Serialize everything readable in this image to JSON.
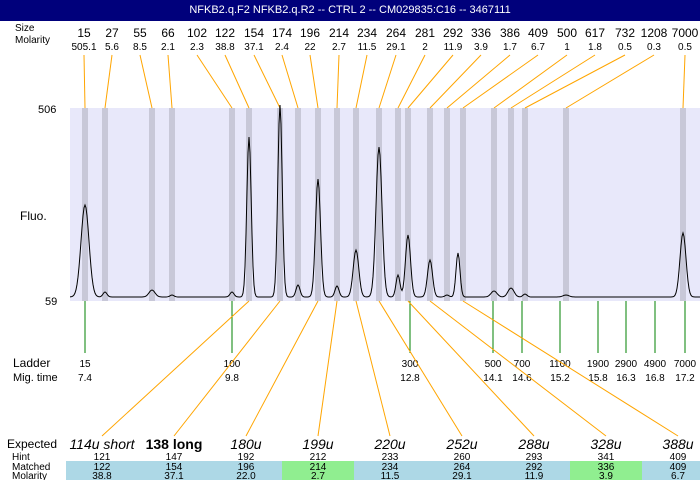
{
  "window": {
    "title": "NFKB2.q.F2  NFKB2.q.R2 -- CTRL 2 -- CM029835:C16 -- 3467111"
  },
  "header_labels": {
    "size": "Size",
    "molarity": "Molarity"
  },
  "sizes": [
    "15",
    "27",
    "55",
    "66",
    "102",
    "122",
    "154",
    "174",
    "196",
    "214",
    "234",
    "264",
    "281",
    "292",
    "336",
    "386",
    "409",
    "500",
    "617",
    "732",
    "1208",
    "7000"
  ],
  "molarities": [
    "505.1",
    "5.6",
    "8.5",
    "2.1",
    "2.3",
    "38.8",
    "37.1",
    "2.4",
    "22",
    "2.7",
    "11.5",
    "29.1",
    "2",
    "11.9",
    "3.9",
    "1.7",
    "6.7",
    "1",
    "1.8",
    "0.5",
    "0.3",
    "0.5"
  ],
  "y_axis": {
    "top": "506",
    "bottom": "59",
    "label": "Fluo."
  },
  "ladder": {
    "label": "Ladder",
    "migtime_label": "Mig. time",
    "sizes": [
      "15",
      "100",
      "300",
      "500",
      "700",
      "1100",
      "1900",
      "2900",
      "4900",
      "7000"
    ],
    "times": [
      "7.4",
      "9.8",
      "12.8",
      "14.1",
      "14.6",
      "15.2",
      "15.8",
      "16.3",
      "16.8",
      "17.2"
    ]
  },
  "table": {
    "row_labels": {
      "expected": "Expected",
      "hint": "Hint",
      "matched": "Matched",
      "molarity": "Molarity"
    },
    "columns": [
      {
        "expected": "114u short",
        "bold": false,
        "hint": "121",
        "matched": "122",
        "molarity": "38.8",
        "color": "#add8e6"
      },
      {
        "expected": "138 long",
        "bold": true,
        "hint": "147",
        "matched": "154",
        "molarity": "37.1",
        "color": "#add8e6"
      },
      {
        "expected": "180u",
        "bold": false,
        "hint": "192",
        "matched": "196",
        "molarity": "22.0",
        "color": "#add8e6"
      },
      {
        "expected": "199u",
        "bold": false,
        "hint": "212",
        "matched": "214",
        "molarity": "2.7",
        "color": "#90ee90"
      },
      {
        "expected": "220u",
        "bold": false,
        "hint": "233",
        "matched": "234",
        "molarity": "11.5",
        "color": "#add8e6"
      },
      {
        "expected": "252u",
        "bold": false,
        "hint": "260",
        "matched": "264",
        "molarity": "29.1",
        "color": "#add8e6"
      },
      {
        "expected": "288u",
        "bold": false,
        "hint": "293",
        "matched": "292",
        "molarity": "11.9",
        "color": "#add8e6"
      },
      {
        "expected": "328u",
        "bold": false,
        "hint": "341",
        "matched": "336",
        "molarity": "3.9",
        "color": "#90ee90"
      },
      {
        "expected": "388u",
        "bold": false,
        "hint": "409",
        "matched": "409",
        "molarity": "6.7",
        "color": "#add8e6"
      }
    ]
  },
  "colors": {
    "title_bg": "#00007b",
    "plot_bg": "#e8e8fa",
    "band": "#c8c8d8",
    "ladder_tick": "#008000",
    "connector": "#ffa500",
    "matched_blue": "#add8e6",
    "matched_green": "#90ee90"
  }
}
